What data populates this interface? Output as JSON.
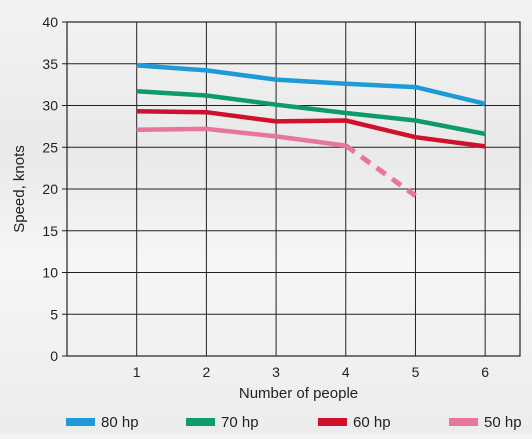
{
  "chart_data": {
    "type": "line",
    "xlabel": "Number of people",
    "ylabel": "Speed, knots",
    "x": [
      1,
      2,
      3,
      4,
      5,
      6
    ],
    "xlim": [
      0,
      6.5
    ],
    "ylim": [
      0,
      40
    ],
    "y_ticks": [
      0,
      5,
      10,
      15,
      20,
      25,
      30,
      35,
      40
    ],
    "x_ticks": [
      1,
      2,
      3,
      4,
      5,
      6
    ],
    "grid": true,
    "legend_position": "bottom",
    "series": [
      {
        "name": "80 hp",
        "color": "#1e9ad6",
        "values": [
          34.8,
          34.2,
          33.1,
          32.6,
          32.2,
          30.2
        ]
      },
      {
        "name": "70 hp",
        "color": "#0f9a6a",
        "values": [
          31.7,
          31.2,
          30.1,
          29.1,
          28.2,
          26.6
        ]
      },
      {
        "name": "60 hp",
        "color": "#d0112b",
        "values": [
          29.3,
          29.2,
          28.1,
          28.2,
          26.2,
          25.1
        ]
      },
      {
        "name": "50 hp",
        "color": "#e8749f",
        "values": [
          27.1,
          27.2,
          26.3,
          25.2,
          19.2,
          null
        ],
        "dashed_from_x": 4
      }
    ]
  }
}
